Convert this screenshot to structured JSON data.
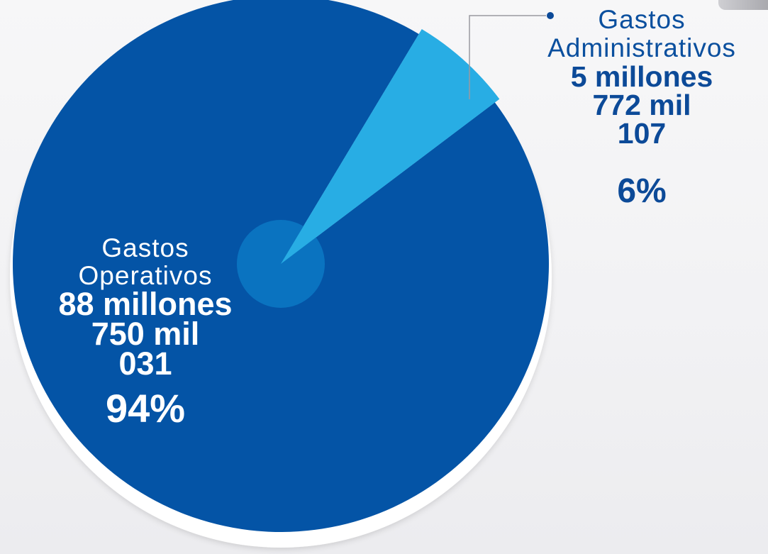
{
  "chart_data": {
    "type": "pie",
    "title": "",
    "slices": [
      {
        "name_line1": "Gastos",
        "name_line2": "Operativos",
        "amount_lines": [
          "88 millones",
          "750 mil",
          "031"
        ],
        "value": 88750031,
        "percent_label": "94%",
        "color": "#0454a6"
      },
      {
        "name_line1": "Gastos",
        "name_line2": "Administrativos",
        "amount_lines": [
          "5 millones",
          "772 mil",
          "107"
        ],
        "value": 5772107,
        "percent_label": "6%",
        "color": "#28ade4"
      }
    ],
    "hub_color": "#0a73c0",
    "callout_color": "#9a9aa0"
  }
}
